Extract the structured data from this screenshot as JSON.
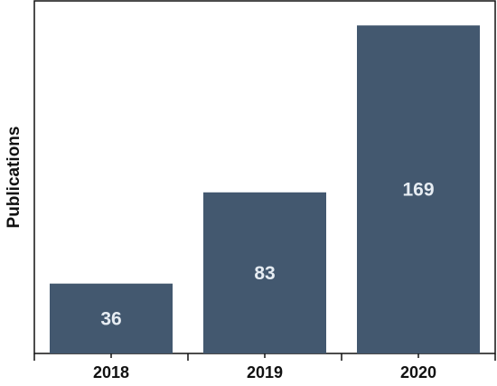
{
  "chart_data": {
    "type": "bar",
    "categories": [
      "2018",
      "2019",
      "2020"
    ],
    "values": [
      36,
      83,
      169
    ],
    "data_labels": [
      "36",
      "83",
      "169"
    ],
    "xlabel": "",
    "ylabel": "Publications",
    "ylim": [
      0,
      170
    ],
    "grid": false,
    "legend": "none",
    "bar_color": "#43586f",
    "label_color": "#e6ecf2"
  }
}
